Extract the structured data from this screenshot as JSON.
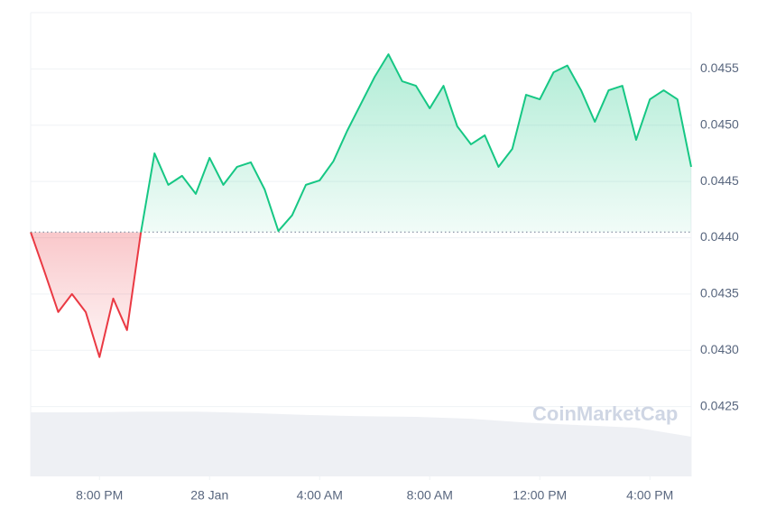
{
  "chart_data": {
    "type": "line",
    "watermark": "CoinMarketCap",
    "x": [
      -6.5,
      -6,
      -5.5,
      -5,
      -4.5,
      -4,
      -3.5,
      -3,
      -2.5,
      -2,
      -1.5,
      -1,
      -0.5,
      0,
      0.5,
      1,
      1.5,
      2,
      2.5,
      3,
      3.5,
      4,
      4.5,
      5,
      5.5,
      6,
      6.5,
      7,
      7.5,
      8,
      8.5,
      9,
      9.5,
      10,
      10.5,
      11,
      11.5,
      12,
      12.5,
      13,
      13.5,
      14,
      14.5,
      15,
      15.5,
      16,
      16.5,
      17,
      17.5
    ],
    "values": [
      0.04405,
      0.0437,
      0.04334,
      0.0435,
      0.04334,
      0.04294,
      0.04346,
      0.04318,
      0.04404,
      0.04475,
      0.04447,
      0.04455,
      0.04439,
      0.04471,
      0.04447,
      0.04463,
      0.04467,
      0.04443,
      0.04406,
      0.0442,
      0.04447,
      0.04451,
      0.04468,
      0.04495,
      0.04519,
      0.04543,
      0.04563,
      0.04539,
      0.04535,
      0.04515,
      0.04535,
      0.04499,
      0.04483,
      0.04491,
      0.04463,
      0.04479,
      0.04527,
      0.04523,
      0.04547,
      0.04553,
      0.04531,
      0.04503,
      0.04531,
      0.04535,
      0.04487,
      0.04523,
      0.04531,
      0.04523,
      0.04463
    ],
    "baseline": 0.04405,
    "up_color": "#16c784",
    "down_color": "#ea3943",
    "xlim": [
      -6.5,
      17.5
    ],
    "xticks": [
      {
        "value": -4,
        "label": "8:00 PM"
      },
      {
        "value": 0,
        "label": "28 Jan"
      },
      {
        "value": 4,
        "label": "4:00 AM"
      },
      {
        "value": 8,
        "label": "8:00 AM"
      },
      {
        "value": 12,
        "label": "12:00 PM"
      },
      {
        "value": 16,
        "label": "4:00 PM"
      }
    ],
    "ylim": [
      0.04188,
      0.046
    ],
    "yticks": [
      0.0425,
      {
        "value": 0.043,
        "label": "0.0430"
      },
      0.0435,
      {
        "value": 0.044,
        "label": "0.0440"
      },
      0.0445,
      {
        "value": 0.045,
        "label": "0.0450"
      },
      0.0455
    ],
    "grid": true,
    "volume": {
      "x": [
        -6.5,
        -4.5,
        -2.5,
        -0.5,
        1.5,
        3.5,
        5.5,
        7.5,
        9.5,
        11.5,
        13.5,
        15.5,
        17.5
      ],
      "values": [
        100,
        100,
        101,
        101,
        99,
        96,
        94,
        93,
        90,
        84,
        80,
        76,
        62
      ],
      "lim": [
        0,
        100
      ],
      "color": "#eef0f4"
    }
  }
}
